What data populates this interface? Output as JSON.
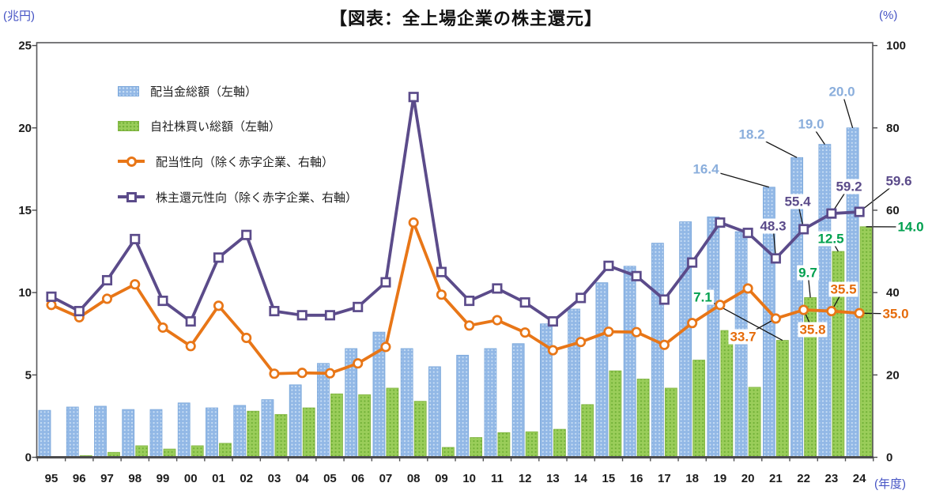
{
  "title": "【図表：全上場企業の株主還元】",
  "axis_units": {
    "left": "(兆円)",
    "right": "(%)",
    "x": "(年度)"
  },
  "legend": [
    {
      "label": "配当金総額（左軸）",
      "marker": "bar",
      "color": "#92B8E6",
      "dot": "#CADFF5",
      "edge": "#79A6DA"
    },
    {
      "label": "自社株買い総額（左軸）",
      "marker": "bar",
      "color": "#9ACD5A",
      "dot": "#6FAF35",
      "edge": "#7FB340"
    },
    {
      "label": "配当性向（除く赤字企業、右軸）",
      "marker": "circle",
      "color": "#E87617"
    },
    {
      "label": "株主還元性向（除く赤字企業、右軸）",
      "marker": "square",
      "color": "#5B4B8A"
    }
  ],
  "chart_data": {
    "type": "bar+line combo, dual axis",
    "title": "【図表：全上場企業の株主還元】",
    "categories": [
      "95",
      "96",
      "97",
      "98",
      "99",
      "00",
      "01",
      "02",
      "03",
      "04",
      "05",
      "06",
      "07",
      "08",
      "09",
      "10",
      "11",
      "12",
      "13",
      "14",
      "15",
      "16",
      "17",
      "18",
      "19",
      "20",
      "21",
      "22",
      "23",
      "24"
    ],
    "series": [
      {
        "id": "dividend_total",
        "name": "配当金総額（左軸）",
        "type": "bar",
        "axis": "left",
        "color": "#92B8E6",
        "dot": "#CADFF5",
        "edge": "#79A6DA",
        "values": [
          2.85,
          3.05,
          3.1,
          2.9,
          2.9,
          3.3,
          3.0,
          3.15,
          3.5,
          4.4,
          5.7,
          6.6,
          7.6,
          6.6,
          5.5,
          6.2,
          6.6,
          6.9,
          8.1,
          9.0,
          10.6,
          11.6,
          13.0,
          14.3,
          14.6,
          13.7,
          16.4,
          18.2,
          19.0,
          20.0
        ]
      },
      {
        "id": "buyback_total",
        "name": "自社株買い総額（左軸）",
        "type": "bar",
        "axis": "left",
        "color": "#9ACD5A",
        "dot": "#6FAF35",
        "edge": "#7FB340",
        "values": [
          0.05,
          0.1,
          0.3,
          0.7,
          0.5,
          0.7,
          0.85,
          2.8,
          2.6,
          3.0,
          3.85,
          3.8,
          4.2,
          3.4,
          0.6,
          1.2,
          1.5,
          1.55,
          1.7,
          3.2,
          5.25,
          4.75,
          4.2,
          5.9,
          7.7,
          4.25,
          7.1,
          9.7,
          12.5,
          14.0
        ]
      },
      {
        "id": "payout_ratio",
        "name": "配当性向（除く赤字企業、右軸）",
        "type": "line",
        "marker": "circle",
        "axis": "right",
        "color": "#E87617",
        "values": [
          37,
          34,
          38.5,
          42,
          31.5,
          27,
          36.8,
          29,
          20.3,
          20.5,
          20.4,
          22.8,
          26.8,
          57,
          39.5,
          32,
          33.3,
          30.3,
          26,
          28,
          30.5,
          30.4,
          27.3,
          32.6,
          37,
          41,
          33.7,
          35.8,
          35.5,
          35.0
        ]
      },
      {
        "id": "total_return_ratio",
        "name": "株主還元性向（除く赤字企業、右軸）",
        "type": "line",
        "marker": "square",
        "axis": "right",
        "color": "#5B4B8A",
        "values": [
          39,
          35.5,
          43,
          53,
          38,
          33,
          48.5,
          54,
          35.5,
          34.5,
          34.5,
          36.5,
          42.5,
          87.5,
          45,
          38,
          41,
          37.6,
          33,
          38.7,
          46.5,
          44,
          38.3,
          47.3,
          57,
          54.5,
          48.3,
          55.4,
          59.2,
          59.6
        ]
      }
    ],
    "left_axis": {
      "unit": "(兆円)",
      "ticks": [
        0,
        5,
        10,
        15,
        20,
        25
      ],
      "range": [
        0,
        25
      ]
    },
    "right_axis": {
      "unit": "(%)",
      "ticks": [
        0,
        20,
        40,
        60,
        80,
        100
      ],
      "range": [
        0,
        100
      ]
    },
    "x_axis_unit": "(年度)",
    "grid": false,
    "legend_position": "inside top-left",
    "annotations": [
      {
        "text": "16.4",
        "series": "dividend_total",
        "category": "21",
        "color": "#8AAEDC"
      },
      {
        "text": "18.2",
        "series": "dividend_total",
        "category": "22",
        "color": "#8AAEDC"
      },
      {
        "text": "19.0",
        "series": "dividend_total",
        "category": "23",
        "color": "#8AAEDC"
      },
      {
        "text": "20.0",
        "series": "dividend_total",
        "category": "24",
        "color": "#8AAEDC"
      },
      {
        "text": "7.1",
        "series": "buyback_total",
        "category": "21",
        "color": "#00A04F"
      },
      {
        "text": "9.7",
        "series": "buyback_total",
        "category": "22",
        "color": "#00A04F"
      },
      {
        "text": "12.5",
        "series": "buyback_total",
        "category": "23",
        "color": "#00A04F"
      },
      {
        "text": "14.0",
        "series": "buyback_total",
        "category": "24",
        "color": "#00A04F"
      },
      {
        "text": "33.7",
        "series": "payout_ratio",
        "category": "21",
        "color": "#E56B0A"
      },
      {
        "text": "35.8",
        "series": "payout_ratio",
        "category": "22",
        "color": "#E56B0A"
      },
      {
        "text": "35.5",
        "series": "payout_ratio",
        "category": "23",
        "color": "#E56B0A"
      },
      {
        "text": "35.0",
        "series": "payout_ratio",
        "category": "24",
        "color": "#E56B0A"
      },
      {
        "text": "48.3",
        "series": "total_return_ratio",
        "category": "21",
        "color": "#5B4B8A"
      },
      {
        "text": "55.4",
        "series": "total_return_ratio",
        "category": "22",
        "color": "#5B4B8A"
      },
      {
        "text": "59.2",
        "series": "total_return_ratio",
        "category": "23",
        "color": "#5B4B8A"
      },
      {
        "text": "59.6",
        "series": "total_return_ratio",
        "category": "24",
        "color": "#5B4B8A"
      }
    ]
  }
}
